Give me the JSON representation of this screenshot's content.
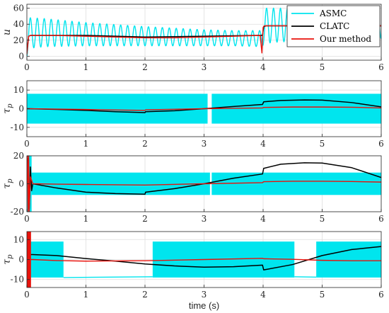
{
  "chart_data": [
    {
      "type": "line",
      "ylabel": "u",
      "xlim": [
        0,
        6
      ],
      "ylim": [
        -5,
        65
      ],
      "yticks": [
        0,
        20,
        40,
        60
      ],
      "xticks": [
        0,
        1,
        2,
        3,
        4,
        5,
        6
      ],
      "grid": true,
      "legend": "top-right",
      "series": [
        {
          "name": "ASMC",
          "color": "#00e5ee",
          "kind": "oscillation",
          "x": [
            0,
            0.05,
            0.3,
            1,
            2,
            3,
            3.5,
            3.99,
            4.01,
            4.3,
            5,
            6
          ],
          "lo": [
            0,
            10,
            12,
            13,
            13,
            13,
            13,
            12,
            16,
            18,
            20,
            22
          ],
          "hi": [
            48,
            48,
            47,
            42,
            37,
            33,
            32,
            32,
            60,
            60,
            57,
            52
          ],
          "cycles_per_unit": 8.5
        },
        {
          "name": "CLATC",
          "color": "#000000",
          "kind": "line",
          "x": [
            0,
            0.03,
            0.06,
            0.1,
            1,
            2,
            3,
            3.9,
            3.99,
            4.01,
            4.05,
            4.5,
            5,
            5.5,
            6
          ],
          "y": [
            5,
            25,
            26,
            26,
            26,
            24,
            25,
            26,
            26,
            37,
            38,
            38,
            38,
            38,
            38
          ]
        },
        {
          "name": "Our method",
          "color": "#e8120c",
          "kind": "line",
          "x": [
            0,
            0.03,
            0.06,
            0.1,
            0.5,
            1,
            1.5,
            2,
            2.5,
            3,
            3.5,
            3.95,
            3.98,
            4.0,
            4.02,
            4.1,
            4.5,
            5,
            5.5,
            6
          ],
          "y": [
            2,
            25,
            26,
            26,
            26,
            25,
            24,
            23,
            23,
            24,
            25,
            26,
            4,
            36,
            38,
            38,
            38,
            38,
            38,
            38
          ]
        }
      ]
    },
    {
      "type": "line",
      "ylabel": "τp",
      "xlim": [
        0,
        6
      ],
      "ylim": [
        -15,
        15
      ],
      "yticks": [
        -10,
        0,
        10
      ],
      "xticks": [
        0,
        1,
        2,
        3,
        4,
        5,
        6
      ],
      "grid": true,
      "series": [
        {
          "name": "ASMC",
          "color": "#00e5ee",
          "kind": "band",
          "segments": [
            [
              0,
              3.06,
              -8,
              8
            ],
            [
              3.13,
              6,
              -8,
              8
            ]
          ]
        },
        {
          "name": "CLATC",
          "color": "#000000",
          "kind": "line",
          "x": [
            0,
            0.5,
            1,
            1.5,
            2,
            2.01,
            2.5,
            3,
            3.5,
            3.99,
            4.01,
            4.3,
            4.7,
            5,
            5.5,
            6
          ],
          "y": [
            0,
            -0.4,
            -0.9,
            -1.6,
            -2.1,
            -1.6,
            -1.1,
            0,
            1.2,
            2.3,
            3.7,
            4.4,
            4.7,
            4.6,
            3.3,
            1.0
          ]
        },
        {
          "name": "Our method",
          "color": "#e8120c",
          "kind": "line",
          "x": [
            0,
            0.5,
            1,
            1.5,
            2,
            2.01,
            2.5,
            3,
            3.5,
            3.99,
            4.01,
            4.5,
            5,
            5.5,
            6
          ],
          "y": [
            0,
            -0.2,
            -0.4,
            -0.7,
            -0.9,
            -0.6,
            -0.3,
            0,
            0.2,
            0.4,
            0.7,
            0.9,
            0.9,
            0.8,
            0.4
          ]
        }
      ]
    },
    {
      "type": "line",
      "ylabel": "τp",
      "xlim": [
        0,
        6
      ],
      "ylim": [
        -20,
        20
      ],
      "yticks": [
        -20,
        0,
        20
      ],
      "xticks": [
        0,
        1,
        2,
        3,
        4,
        5,
        6
      ],
      "grid": true,
      "series": [
        {
          "name": "ASMC",
          "color": "#00e5ee",
          "kind": "band",
          "segments": [
            [
              0.08,
              3.1,
              -8,
              8
            ],
            [
              3.13,
              6,
              -8,
              8
            ]
          ],
          "spikes": [
            [
              0.0,
              0.08,
              -20,
              20
            ]
          ]
        },
        {
          "name": "CLATC",
          "color": "#000000",
          "kind": "line",
          "x": [
            0,
            0.02,
            0.04,
            0.06,
            0.08,
            0.1,
            0.5,
            1,
            1.5,
            2,
            2.01,
            2.5,
            3,
            3.5,
            3.99,
            4.01,
            4.3,
            4.7,
            5,
            5.5,
            6
          ],
          "y": [
            0,
            18,
            -18,
            12,
            -5,
            0,
            -3,
            -6,
            -7,
            -7.5,
            -6,
            -3.5,
            0,
            4,
            7,
            11,
            14,
            15,
            14.8,
            11.5,
            4.5
          ]
        },
        {
          "name": "Our method",
          "color": "#e8120c",
          "kind": "line",
          "x": [
            0,
            0.01,
            0.02,
            0.03,
            0.04,
            0.06,
            0.1,
            0.5,
            1,
            2,
            3,
            3.99,
            4.01,
            4.5,
            5,
            5.5,
            6
          ],
          "y": [
            0,
            20,
            -20,
            20,
            -20,
            5,
            0,
            -0.3,
            -0.5,
            -0.9,
            0,
            0.8,
            1.5,
            1.8,
            1.8,
            1.6,
            1.2
          ]
        }
      ]
    },
    {
      "type": "line",
      "ylabel": "τp",
      "xlabel": "time (s)",
      "xlim": [
        0,
        6
      ],
      "ylim": [
        -14,
        14
      ],
      "yticks": [
        -10,
        0,
        10
      ],
      "xticks": [
        0,
        1,
        2,
        3,
        4,
        5,
        6
      ],
      "grid": true,
      "series": [
        {
          "name": "ASMC",
          "color": "#00e5ee",
          "kind": "band",
          "segments": [
            [
              0,
              0.62,
              -9,
              9
            ],
            [
              2.13,
              4.53,
              -9,
              9
            ],
            [
              4.9,
              6,
              -9,
              9
            ]
          ],
          "gap_lines": [
            [
              0.62,
              2.13,
              -9,
              -8.6
            ],
            [
              4.53,
              4.9,
              -8.6,
              -8.8
            ]
          ]
        },
        {
          "name": "CLATC",
          "color": "#000000",
          "kind": "line",
          "x": [
            0,
            0.04,
            0.06,
            0.1,
            0.5,
            1,
            1.5,
            2,
            2.5,
            3,
            3.5,
            3.99,
            4.01,
            4.5,
            5,
            5.5,
            6
          ],
          "y": [
            0,
            3,
            2.5,
            2.5,
            2,
            0.5,
            -0.8,
            -2.2,
            -3.2,
            -3.8,
            -3.6,
            -2.8,
            -5.2,
            -2.5,
            2,
            5,
            6.5
          ]
        },
        {
          "name": "Our method",
          "color": "#e8120c",
          "kind": "line",
          "x": [
            0,
            0.1,
            0.5,
            1,
            2,
            3,
            3.99,
            4.01,
            4.5,
            5,
            5.5,
            6
          ],
          "y": [
            0,
            0,
            -0.5,
            -0.8,
            -0.6,
            0,
            0.6,
            0.4,
            0.1,
            -0.4,
            -0.6,
            -0.6
          ],
          "burst": [
            0,
            0.07,
            -14,
            14
          ]
        }
      ]
    }
  ]
}
